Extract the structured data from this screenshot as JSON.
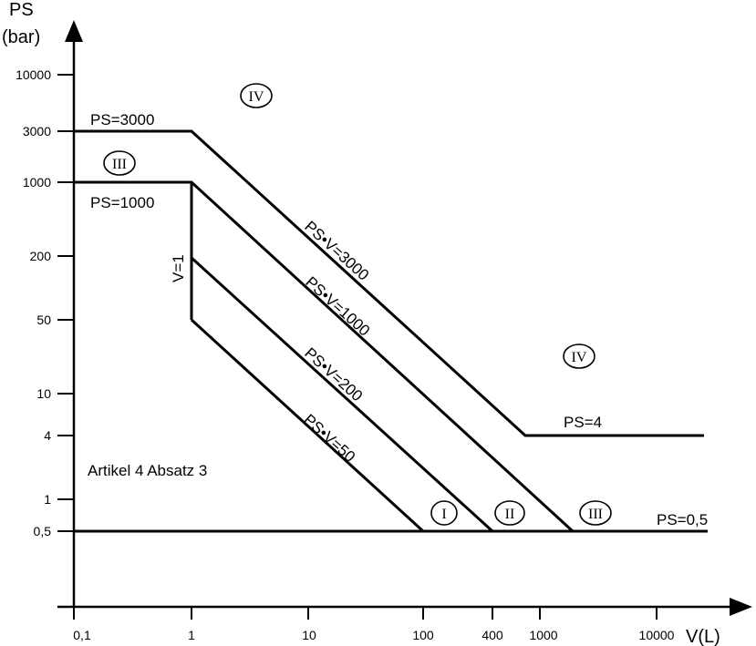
{
  "axes": {
    "y_title_line1": "PS",
    "y_title_line2": "(bar)",
    "x_title": "V(L)",
    "y_ticks": [
      "10000",
      "3000",
      "1000",
      "200",
      "50",
      "10",
      "4",
      "1",
      "0,5"
    ],
    "x_ticks": [
      "0,1",
      "1",
      "10",
      "100",
      "400",
      "1000",
      "10000"
    ],
    "x_scale": "log",
    "y_scale": "log"
  },
  "boundaries": [
    {
      "label": "PS=3000",
      "kind": "constant-pressure",
      "value": 3000
    },
    {
      "label": "PS=1000",
      "kind": "constant-pressure",
      "value": 1000
    },
    {
      "label": "PS=4",
      "kind": "constant-pressure",
      "value": 4
    },
    {
      "label": "PS=0,5",
      "kind": "constant-pressure",
      "value": 0.5
    },
    {
      "label": "V=1",
      "kind": "constant-volume",
      "value": 1
    },
    {
      "label": "PS•V=3000",
      "kind": "constant-product",
      "value": 3000
    },
    {
      "label": "PS•V=1000",
      "kind": "constant-product",
      "value": 1000
    },
    {
      "label": "PS•V=200",
      "kind": "constant-product",
      "value": 200
    },
    {
      "label": "PS•V=50",
      "kind": "constant-product",
      "value": 50
    }
  ],
  "categories": {
    "top": "IV",
    "upper_left": "III",
    "right": "IV",
    "bottom_i": "I",
    "bottom_ii": "II",
    "bottom_iii": "III"
  },
  "region_note": "Artikel 4 Absatz 3"
}
